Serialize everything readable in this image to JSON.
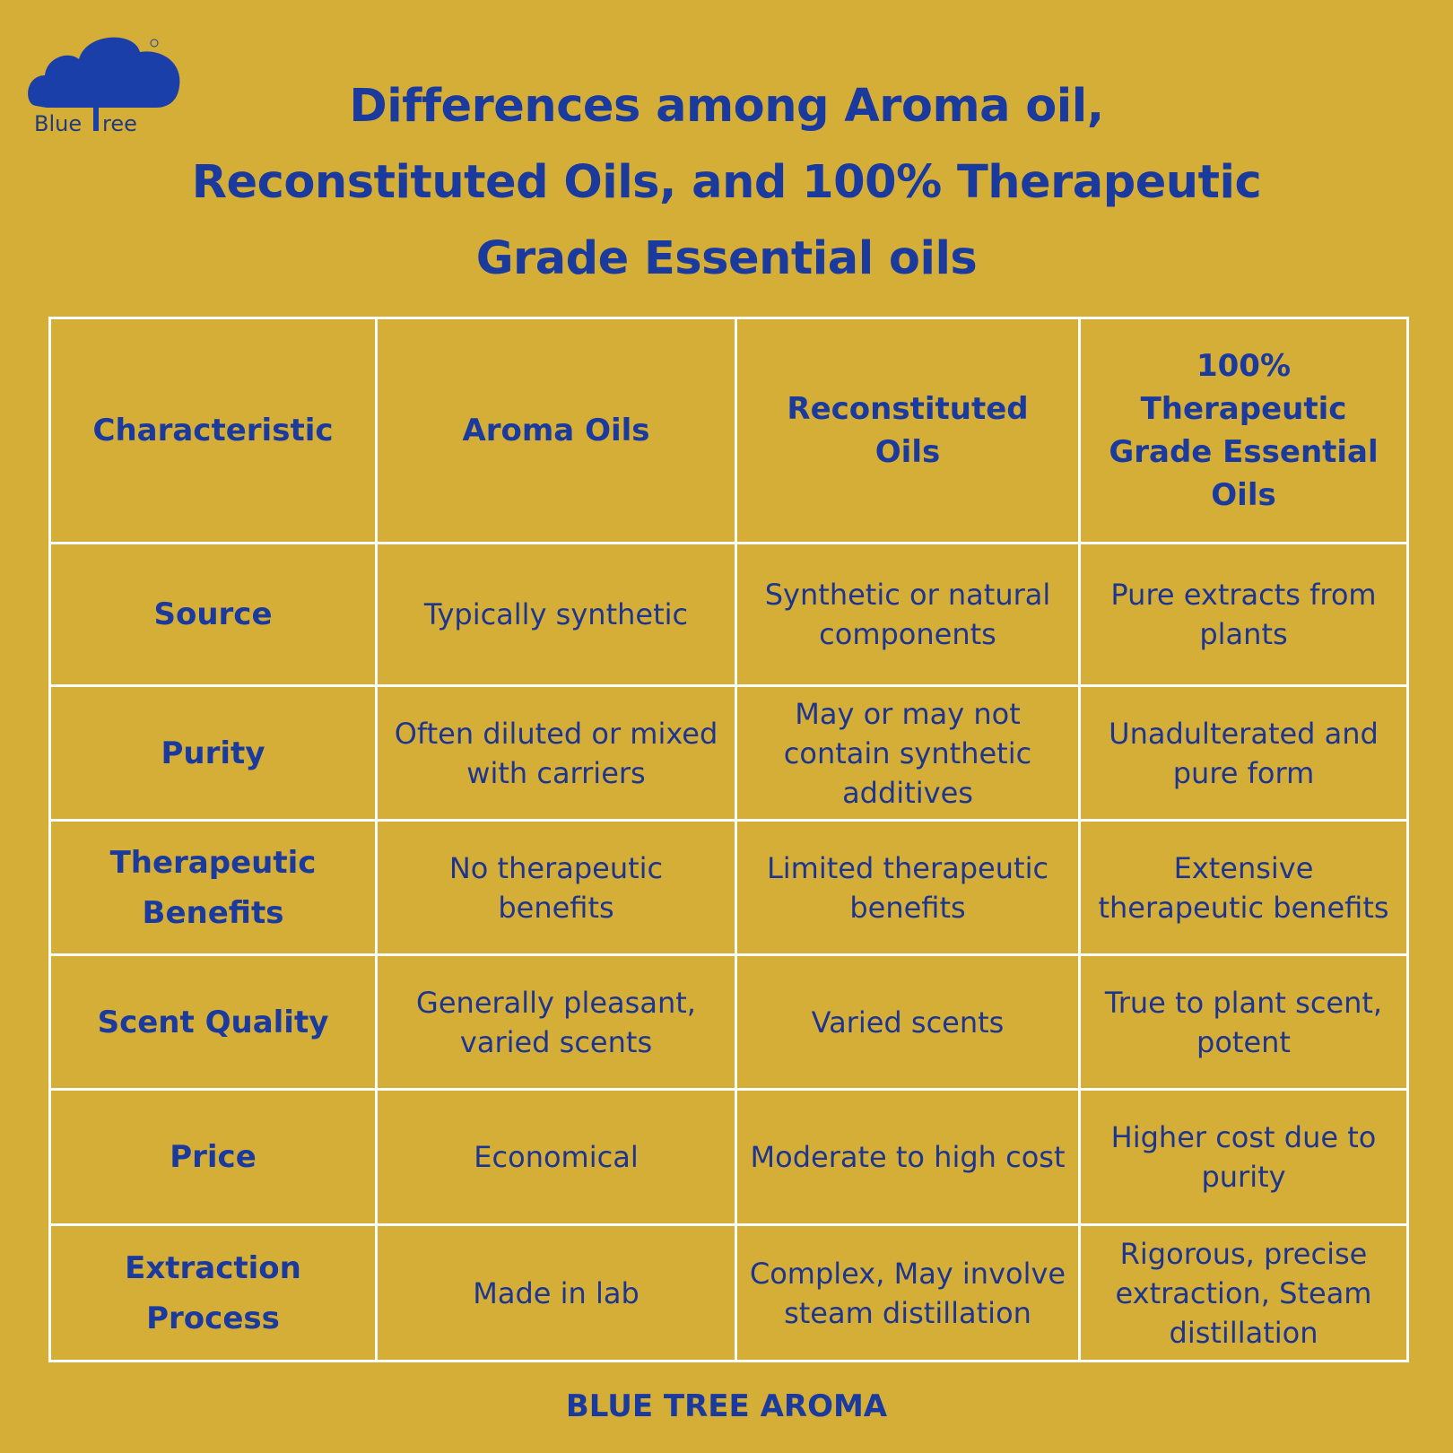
{
  "logo": {
    "text": "Blue Tree",
    "color": "#1b3fa8"
  },
  "colors": {
    "background": "#d5ae38",
    "text": "#1b3a9e",
    "grid": "#ffffff"
  },
  "title": [
    "Differences among Aroma oil,",
    "Reconstituted Oils, and 100% Therapeutic",
    "Grade Essential oils"
  ],
  "table": {
    "headers": [
      "Characteristic",
      "Aroma Oils",
      "Reconstituted Oils",
      "100% Therapeutic Grade Essential Oils"
    ],
    "rows": [
      [
        "Source",
        "Typically synthetic",
        "Synthetic or natural components",
        "Pure extracts from plants"
      ],
      [
        "Purity",
        "Often diluted or mixed with carriers",
        "May or may not contain synthetic additives",
        "Unadulterated and pure form"
      ],
      [
        "Therapeutic Benefits",
        "No therapeutic benefits",
        "Limited therapeutic benefits",
        "Extensive therapeutic benefits"
      ],
      [
        "Scent Quality",
        "Generally pleasant, varied scents",
        "Varied scents",
        "True to plant scent, potent"
      ],
      [
        "Price",
        "Economical",
        "Moderate to high cost",
        "Higher cost due to purity"
      ],
      [
        "Extraction Process",
        "Made in lab",
        "Complex, May involve steam distillation",
        "Rigorous, precise extraction, Steam distillation"
      ]
    ]
  },
  "footer": "BLUE TREE AROMA"
}
